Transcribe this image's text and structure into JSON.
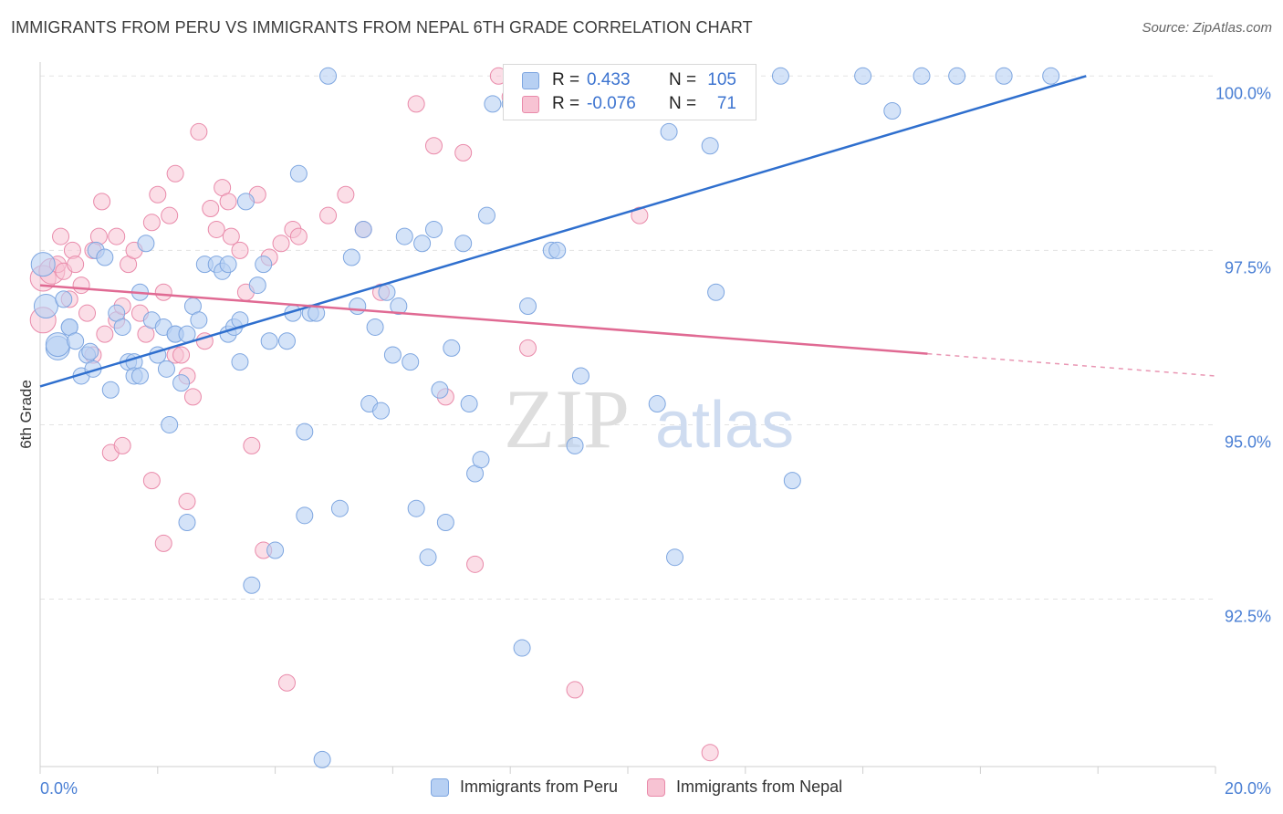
{
  "title": "IMMIGRANTS FROM PERU VS IMMIGRANTS FROM NEPAL 6TH GRADE CORRELATION CHART",
  "source": "Source: ZipAtlas.com",
  "legend": {
    "rows": [
      {
        "r_label": "R =",
        "r_value": "0.433",
        "n_label": "N =",
        "n_value": "105"
      },
      {
        "r_label": "R =",
        "r_value": "-0.076",
        "n_label": "N =",
        "n_value": "71"
      }
    ]
  },
  "bottom_legend": [
    "Immigrants from Peru",
    "Immigrants from Nepal"
  ],
  "colors": {
    "peru_fill": "#b7d0f3",
    "peru_stroke": "#7ea6e0",
    "peru_line": "#2f6fce",
    "nepal_fill": "#f7c3d3",
    "nepal_stroke": "#e98aaa",
    "nepal_line": "#e06a93",
    "axis_text": "#4a7fd4"
  },
  "chart_data": {
    "type": "scatter",
    "xlabel": "",
    "ylabel": "6th Grade",
    "xlim": [
      0,
      20
    ],
    "ylim": [
      90.1,
      100.2
    ],
    "x_tick_labels": [
      "0.0%",
      "20.0%"
    ],
    "y_ticks": [
      92.5,
      95.0,
      97.5,
      100.0
    ],
    "y_tick_labels": [
      "92.5%",
      "95.0%",
      "97.5%",
      "100.0%"
    ],
    "grid": true,
    "watermark": "ZIPatlas",
    "series": [
      {
        "name": "Immigrants from Peru",
        "trend": {
          "x0": 0,
          "y0": 95.55,
          "x1": 17.8,
          "y1": 100.0,
          "dashed_from": null
        },
        "points": [
          [
            0.05,
            97.3
          ],
          [
            0.1,
            96.7
          ],
          [
            0.3,
            96.1
          ],
          [
            0.3,
            96.15
          ],
          [
            0.4,
            96.8
          ],
          [
            0.5,
            96.4
          ],
          [
            0.5,
            96.4
          ],
          [
            0.6,
            96.2
          ],
          [
            0.7,
            95.7
          ],
          [
            0.8,
            96.0
          ],
          [
            0.85,
            96.05
          ],
          [
            0.9,
            95.8
          ],
          [
            0.95,
            97.5
          ],
          [
            1.1,
            97.4
          ],
          [
            1.2,
            95.5
          ],
          [
            1.3,
            96.6
          ],
          [
            1.4,
            96.4
          ],
          [
            1.5,
            95.9
          ],
          [
            1.6,
            95.9
          ],
          [
            1.6,
            95.7
          ],
          [
            1.7,
            95.7
          ],
          [
            1.7,
            96.9
          ],
          [
            1.8,
            97.6
          ],
          [
            1.9,
            96.5
          ],
          [
            2.0,
            96.0
          ],
          [
            2.1,
            96.4
          ],
          [
            2.15,
            95.8
          ],
          [
            2.2,
            95.0
          ],
          [
            2.3,
            96.3
          ],
          [
            2.3,
            96.3
          ],
          [
            2.4,
            95.6
          ],
          [
            2.5,
            96.3
          ],
          [
            2.5,
            93.6
          ],
          [
            2.6,
            96.7
          ],
          [
            2.7,
            96.5
          ],
          [
            2.8,
            97.3
          ],
          [
            3.0,
            97.3
          ],
          [
            3.1,
            97.2
          ],
          [
            3.2,
            97.3
          ],
          [
            3.2,
            96.3
          ],
          [
            3.3,
            96.4
          ],
          [
            3.4,
            96.5
          ],
          [
            3.4,
            95.9
          ],
          [
            3.5,
            98.2
          ],
          [
            3.6,
            92.7
          ],
          [
            3.7,
            97.0
          ],
          [
            3.8,
            97.3
          ],
          [
            3.9,
            96.2
          ],
          [
            4.0,
            93.2
          ],
          [
            4.2,
            96.2
          ],
          [
            4.3,
            96.6
          ],
          [
            4.4,
            98.6
          ],
          [
            4.5,
            93.7
          ],
          [
            4.5,
            94.9
          ],
          [
            4.6,
            96.6
          ],
          [
            4.7,
            96.6
          ],
          [
            4.8,
            90.2
          ],
          [
            4.9,
            100.0
          ],
          [
            5.1,
            93.8
          ],
          [
            5.3,
            97.4
          ],
          [
            5.4,
            96.7
          ],
          [
            5.5,
            97.8
          ],
          [
            5.6,
            95.3
          ],
          [
            5.7,
            96.4
          ],
          [
            5.8,
            95.2
          ],
          [
            5.9,
            96.9
          ],
          [
            6.0,
            96.0
          ],
          [
            6.1,
            96.7
          ],
          [
            6.2,
            97.7
          ],
          [
            6.3,
            95.9
          ],
          [
            6.4,
            93.8
          ],
          [
            6.5,
            97.6
          ],
          [
            6.6,
            93.1
          ],
          [
            6.7,
            97.8
          ],
          [
            6.8,
            95.5
          ],
          [
            6.9,
            93.6
          ],
          [
            7.0,
            96.1
          ],
          [
            7.2,
            97.6
          ],
          [
            7.3,
            95.3
          ],
          [
            7.4,
            94.3
          ],
          [
            7.5,
            94.5
          ],
          [
            7.6,
            98.0
          ],
          [
            7.7,
            99.6
          ],
          [
            8.0,
            99.6
          ],
          [
            8.2,
            91.8
          ],
          [
            8.3,
            96.7
          ],
          [
            8.7,
            97.5
          ],
          [
            8.8,
            97.5
          ],
          [
            9.0,
            99.7
          ],
          [
            9.1,
            94.7
          ],
          [
            9.2,
            95.7
          ],
          [
            9.4,
            100.0
          ],
          [
            9.7,
            99.8
          ],
          [
            9.9,
            100.0
          ],
          [
            10.2,
            100.0
          ],
          [
            10.5,
            95.3
          ],
          [
            10.7,
            99.2
          ],
          [
            10.8,
            93.1
          ],
          [
            11.4,
            99.0
          ],
          [
            11.5,
            96.9
          ],
          [
            12.6,
            100.0
          ],
          [
            12.8,
            94.2
          ],
          [
            14.0,
            100.0
          ],
          [
            14.5,
            99.5
          ],
          [
            15.0,
            100.0
          ],
          [
            15.6,
            100.0
          ],
          [
            16.4,
            100.0
          ],
          [
            17.2,
            100.0
          ]
        ]
      },
      {
        "name": "Immigrants from Nepal",
        "trend": {
          "x0": 0,
          "y0": 97.0,
          "x1": 20.0,
          "y1": 95.7,
          "dashed_from": 15.1
        },
        "points": [
          [
            0.05,
            97.1
          ],
          [
            0.05,
            96.5
          ],
          [
            0.2,
            97.2
          ],
          [
            0.3,
            97.3
          ],
          [
            0.35,
            97.7
          ],
          [
            0.4,
            97.2
          ],
          [
            0.5,
            96.8
          ],
          [
            0.55,
            97.5
          ],
          [
            0.6,
            97.3
          ],
          [
            0.7,
            97.0
          ],
          [
            0.8,
            96.6
          ],
          [
            0.9,
            96.0
          ],
          [
            0.9,
            97.5
          ],
          [
            1.0,
            97.7
          ],
          [
            1.05,
            98.2
          ],
          [
            1.1,
            96.3
          ],
          [
            1.2,
            94.6
          ],
          [
            1.3,
            96.5
          ],
          [
            1.3,
            97.7
          ],
          [
            1.4,
            96.7
          ],
          [
            1.4,
            94.7
          ],
          [
            1.5,
            97.3
          ],
          [
            1.6,
            97.5
          ],
          [
            1.7,
            96.6
          ],
          [
            1.8,
            96.3
          ],
          [
            1.9,
            94.2
          ],
          [
            1.9,
            97.9
          ],
          [
            2.0,
            98.3
          ],
          [
            2.1,
            96.9
          ],
          [
            2.1,
            93.3
          ],
          [
            2.2,
            98.0
          ],
          [
            2.3,
            96.0
          ],
          [
            2.3,
            98.6
          ],
          [
            2.4,
            96.0
          ],
          [
            2.5,
            95.7
          ],
          [
            2.5,
            93.9
          ],
          [
            2.6,
            95.4
          ],
          [
            2.7,
            99.2
          ],
          [
            2.8,
            96.2
          ],
          [
            2.9,
            98.1
          ],
          [
            3.0,
            97.8
          ],
          [
            3.1,
            98.4
          ],
          [
            3.2,
            98.2
          ],
          [
            3.25,
            97.7
          ],
          [
            3.4,
            97.5
          ],
          [
            3.5,
            96.9
          ],
          [
            3.6,
            94.7
          ],
          [
            3.7,
            98.3
          ],
          [
            3.8,
            93.2
          ],
          [
            3.9,
            97.4
          ],
          [
            4.1,
            97.6
          ],
          [
            4.2,
            91.3
          ],
          [
            4.3,
            97.8
          ],
          [
            4.4,
            97.7
          ],
          [
            4.9,
            98.0
          ],
          [
            5.2,
            98.3
          ],
          [
            5.5,
            97.8
          ],
          [
            5.8,
            96.9
          ],
          [
            6.4,
            99.6
          ],
          [
            6.7,
            99.0
          ],
          [
            6.9,
            95.4
          ],
          [
            7.2,
            98.9
          ],
          [
            7.4,
            93.0
          ],
          [
            7.8,
            100.0
          ],
          [
            8.0,
            99.7
          ],
          [
            8.3,
            96.1
          ],
          [
            8.6,
            100.0
          ],
          [
            8.9,
            100.0
          ],
          [
            9.1,
            91.2
          ],
          [
            9.4,
            100.0
          ],
          [
            10.2,
            98.0
          ],
          [
            11.4,
            90.3
          ]
        ]
      }
    ]
  }
}
